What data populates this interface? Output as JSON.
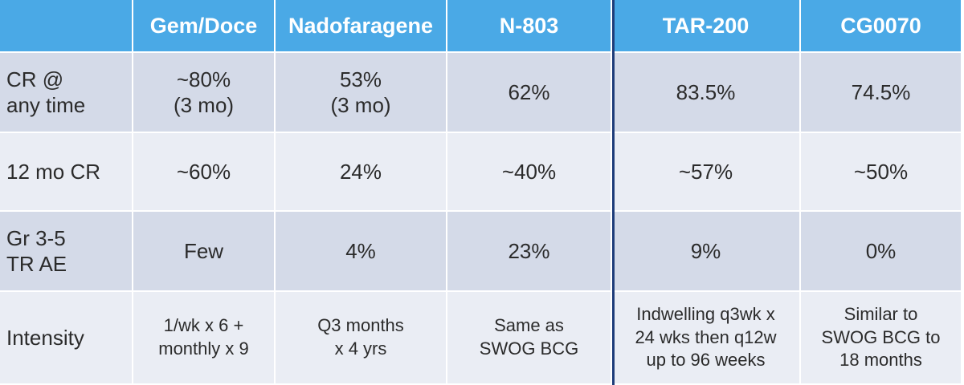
{
  "table": {
    "headers": [
      "",
      "Gem/Doce",
      "Nadofaragene",
      "N-803",
      "TAR-200",
      "CG0070"
    ],
    "rows": [
      {
        "label": [
          "CR @",
          "any time"
        ],
        "cells": [
          [
            "~80%",
            "(3 mo)"
          ],
          [
            "53%",
            "(3 mo)"
          ],
          [
            "62%"
          ],
          [
            "83.5%"
          ],
          [
            "74.5%"
          ]
        ]
      },
      {
        "label": [
          "12 mo CR"
        ],
        "cells": [
          [
            "~60%"
          ],
          [
            "24%"
          ],
          [
            "~40%"
          ],
          [
            "~57%"
          ],
          [
            "~50%"
          ]
        ]
      },
      {
        "label": [
          "Gr 3-5",
          "TR AE"
        ],
        "cells": [
          [
            "Few"
          ],
          [
            "4%"
          ],
          [
            "23%"
          ],
          [
            "9%"
          ],
          [
            "0%"
          ]
        ]
      },
      {
        "label": [
          "Intensity"
        ],
        "cells": [
          [
            "1/wk x 6 +",
            "monthly x 9"
          ],
          [
            "Q3 months",
            "x 4  yrs"
          ],
          [
            "Same as",
            "SWOG BCG"
          ],
          [
            "Indwelling q3wk x",
            "24 wks then q12w",
            "up to 96 weeks"
          ],
          [
            "Similar to",
            "SWOG BCG to",
            "18 months"
          ]
        ]
      }
    ]
  },
  "colors": {
    "header_bg": "#4aa9e6",
    "header_text": "#ffffff",
    "row_dark": "#d4dae8",
    "row_light": "#eaedf4",
    "divider": "#1f3d7a"
  }
}
